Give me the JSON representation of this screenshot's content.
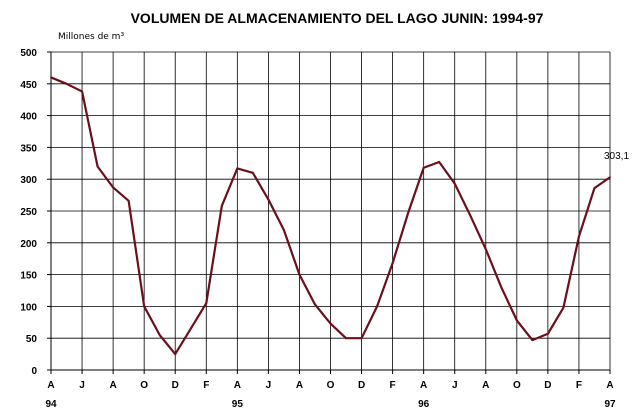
{
  "chart_data": {
    "type": "line",
    "title": "VOLUMEN DE ALMACENAMIENTO DEL LAGO JUNIN: 1994-97",
    "unit_label": "Millones de m³",
    "ylim": [
      0,
      500
    ],
    "y_ticks": [
      "0",
      "50",
      "100",
      "150",
      "200",
      "250",
      "300",
      "350",
      "400",
      "450",
      "500"
    ],
    "x_tick_labels": [
      "A",
      "J",
      "A",
      "O",
      "D",
      "F",
      "A",
      "J",
      "A",
      "O",
      "D",
      "F",
      "A",
      "J",
      "A",
      "O",
      "D",
      "F",
      "A"
    ],
    "year_labels": [
      {
        "label": "94",
        "tick_index": 0
      },
      {
        "label": "95",
        "tick_index": 6
      },
      {
        "label": "96",
        "tick_index": 12
      },
      {
        "label": "97",
        "tick_index": 18
      }
    ],
    "grid": true,
    "line_color": "#6b0f1a",
    "series": [
      {
        "values": [
          460,
          450,
          438,
          320,
          287,
          266,
          100,
          55,
          25,
          65,
          105,
          258,
          317,
          310,
          268,
          220,
          150,
          103,
          73,
          50,
          50,
          100,
          168,
          247,
          318,
          327,
          293,
          243,
          190,
          130,
          78,
          47,
          57,
          98,
          210,
          286,
          303.1
        ]
      }
    ],
    "annotation": {
      "text": "303,1",
      "point_index": 36
    }
  }
}
